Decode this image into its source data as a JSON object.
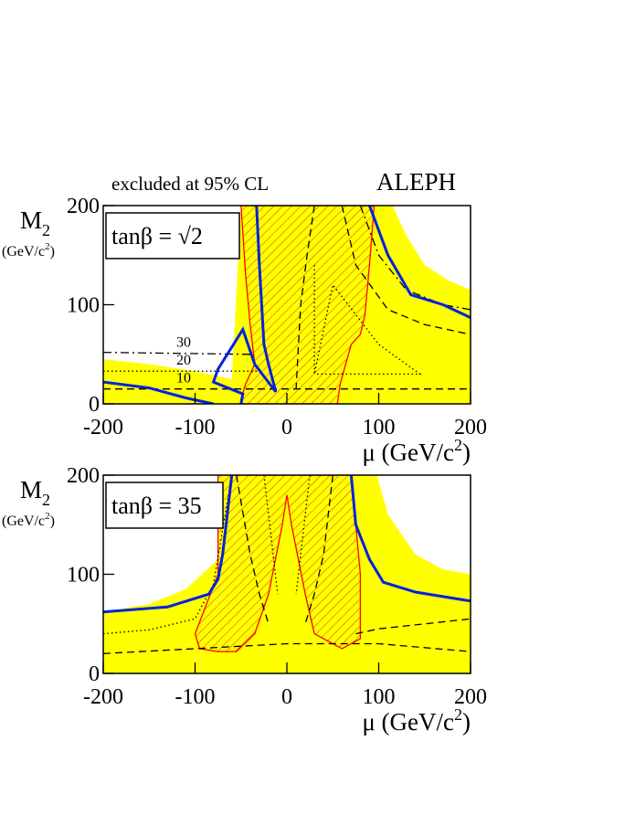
{
  "header": {
    "left": "excluded at 95% CL",
    "right": "ALEPH"
  },
  "chart_data": [
    {
      "type": "contour",
      "label": "tanβ = √2",
      "ylabel": [
        "M",
        "2"
      ],
      "yunit": [
        "(GeV/c",
        "2",
        ")"
      ],
      "xlabel": [
        "μ (GeV/c",
        "2",
        ")"
      ],
      "xlim": [
        -200,
        200
      ],
      "ylim": [
        0,
        200
      ],
      "xticks": [
        -200,
        -100,
        0,
        100,
        200
      ],
      "yticks": [
        0,
        100,
        200
      ],
      "annotations": [
        "30",
        "20",
        "10"
      ],
      "series": [
        {
          "style": "fill",
          "color": "#ffff00",
          "x": [
            -200,
            -200,
            -150,
            -100,
            -60,
            -50,
            115,
            130,
            150,
            175,
            200,
            200
          ],
          "values": [
            0,
            45,
            40,
            33,
            25,
            200,
            200,
            170,
            140,
            125,
            115,
            0
          ]
        },
        {
          "style": "hatch",
          "color": "#ff0000",
          "x": [
            -50,
            -45,
            -40,
            -35,
            -45,
            -50,
            -50,
            55,
            58,
            70,
            80,
            85,
            90,
            95
          ],
          "values": [
            200,
            130,
            80,
            40,
            20,
            5,
            0,
            0,
            20,
            60,
            70,
            90,
            140,
            200
          ]
        },
        {
          "style": "dashed",
          "color": "#000000",
          "x": [
            -200,
            200
          ],
          "values": [
            15,
            15
          ]
        },
        {
          "style": "dashdot",
          "color": "#000000",
          "x": [
            -200,
            -40
          ],
          "values": [
            52,
            50
          ]
        },
        {
          "style": "dotted",
          "color": "#000000",
          "x": [
            -200,
            -30
          ],
          "values": [
            33,
            33
          ]
        },
        {
          "style": "dashed",
          "color": "#000000",
          "x": [
            30,
            22,
            15,
            12,
            10
          ],
          "values": [
            200,
            150,
            100,
            50,
            15
          ]
        },
        {
          "style": "dashed",
          "color": "#000000",
          "x": [
            60,
            75,
            110,
            150,
            200
          ],
          "values": [
            200,
            140,
            95,
            80,
            70
          ]
        },
        {
          "style": "dashdot",
          "color": "#000000",
          "x": [
            80,
            100,
            130,
            170,
            200
          ],
          "values": [
            200,
            150,
            115,
            100,
            95
          ]
        },
        {
          "style": "dotted",
          "color": "#000000",
          "x": [
            30,
            30,
            50,
            100,
            145,
            30
          ],
          "values": [
            140,
            30,
            120,
            60,
            30,
            30
          ]
        },
        {
          "style": "line",
          "color": "#0022dd",
          "x": [
            -33,
            -30,
            -25,
            -20,
            -12
          ],
          "values": [
            200,
            140,
            60,
            40,
            12
          ]
        },
        {
          "style": "line",
          "color": "#0022dd",
          "x": [
            -200,
            -150,
            -110,
            -80
          ],
          "values": [
            22,
            16,
            6,
            0
          ]
        },
        {
          "style": "line",
          "color": "#0022dd",
          "x": [
            -50,
            -48,
            -80,
            -75,
            -48,
            -35,
            -12
          ],
          "values": [
            0,
            10,
            22,
            35,
            75,
            40,
            12
          ]
        },
        {
          "style": "line",
          "color": "#0022dd",
          "x": [
            90,
            110,
            135,
            170,
            200
          ],
          "values": [
            200,
            150,
            110,
            100,
            87
          ]
        }
      ]
    },
    {
      "type": "contour",
      "label": "tanβ = 35",
      "ylabel": [
        "M",
        "2"
      ],
      "yunit": [
        "(GeV/c",
        "2",
        ")"
      ],
      "xlabel": [
        "μ (GeV/c",
        "2",
        ")"
      ],
      "xlim": [
        -200,
        200
      ],
      "ylim": [
        0,
        200
      ],
      "xticks": [
        -200,
        -100,
        0,
        100,
        200
      ],
      "yticks": [
        0,
        100,
        200
      ],
      "series": [
        {
          "style": "fill",
          "color": "#ffff00",
          "x": [
            -200,
            -200,
            -150,
            -110,
            -75,
            -55,
            -45,
            98,
            110,
            140,
            170,
            200,
            200
          ],
          "values": [
            0,
            62,
            70,
            85,
            115,
            160,
            200,
            200,
            160,
            120,
            105,
            100,
            0
          ]
        },
        {
          "style": "hatch",
          "color": "#ff0000",
          "x": [
            -75,
            -75,
            -100,
            -95,
            -75,
            -55,
            -35,
            -20,
            -5,
            0,
            5,
            20,
            30,
            60,
            80,
            80,
            70
          ],
          "values": [
            200,
            100,
            40,
            25,
            22,
            22,
            40,
            80,
            150,
            180,
            150,
            80,
            40,
            25,
            35,
            100,
            200
          ]
        },
        {
          "style": "dashed",
          "color": "#000000",
          "x": [
            -200,
            -100,
            0,
            100,
            200
          ],
          "values": [
            20,
            25,
            30,
            30,
            22
          ]
        },
        {
          "style": "dotted",
          "color": "#000000",
          "x": [
            -200,
            -150,
            -100,
            -80,
            -60
          ],
          "values": [
            40,
            44,
            55,
            90,
            200
          ]
        },
        {
          "style": "dashed",
          "color": "#000000",
          "x": [
            -55,
            -40,
            -30,
            -20
          ],
          "values": [
            200,
            120,
            80,
            50
          ]
        },
        {
          "style": "dotted",
          "color": "#000000",
          "x": [
            -25,
            -15,
            -10
          ],
          "values": [
            200,
            120,
            80
          ]
        },
        {
          "style": "dotted",
          "color": "#000000",
          "x": [
            25,
            15,
            10
          ],
          "values": [
            200,
            120,
            80
          ]
        },
        {
          "style": "dashed",
          "color": "#000000",
          "x": [
            50,
            40,
            30,
            20
          ],
          "values": [
            200,
            120,
            80,
            50
          ]
        },
        {
          "style": "dashed",
          "color": "#000000",
          "x": [
            75,
            100,
            150,
            200
          ],
          "values": [
            40,
            45,
            50,
            55
          ]
        },
        {
          "style": "line",
          "color": "#0022dd",
          "x": [
            -200,
            -130,
            -85,
            -75,
            -70,
            -60
          ],
          "values": [
            62,
            67,
            80,
            95,
            120,
            200
          ]
        },
        {
          "style": "line",
          "color": "#0022dd",
          "x": [
            70,
            75,
            90,
            105,
            140,
            200
          ],
          "values": [
            200,
            150,
            115,
            92,
            82,
            73
          ]
        }
      ]
    }
  ]
}
